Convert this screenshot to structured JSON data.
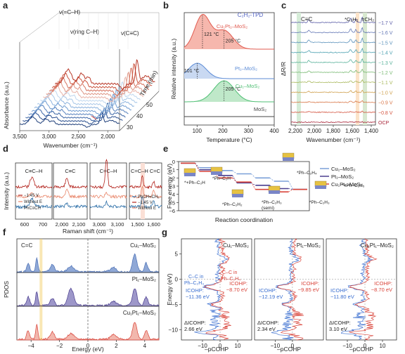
{
  "panel_labels": [
    "a",
    "b",
    "c",
    "d",
    "e",
    "f",
    "g"
  ],
  "chart_data": [
    {
      "id": "a",
      "type": "line",
      "xlabel": "Wavenumber (cm⁻¹)",
      "ylabel": "Absorbance (a.u.)",
      "zlabel": "Time (min)",
      "xticks": [
        "3,500",
        "3,000",
        "2,500",
        "2,000"
      ],
      "zticks": [
        "30",
        "40",
        "50"
      ],
      "annotations": [
        "ν(=C–H)",
        "ν(ring C–H)",
        "ν(C≡C)"
      ],
      "x": [
        3500,
        3400,
        3300,
        3200,
        3100,
        3000,
        2900,
        2800,
        2700,
        2600,
        2500,
        2400,
        2300,
        2200,
        2100,
        2000,
        1900,
        1800
      ],
      "series_profile": [
        0.05,
        0.1,
        0.5,
        0.25,
        0.3,
        0.2,
        0.18,
        0.15,
        0.12,
        0.1,
        0.12,
        0.15,
        0.05,
        0.2,
        0.6,
        0.3,
        0.25,
        0.5
      ],
      "n_series": 13
    },
    {
      "id": "b",
      "type": "area",
      "title": "C₂H₂-TPD",
      "xlabel": "Temperature (°C)",
      "ylabel": "Relative intensity (a.u.)",
      "xticks": [
        "100",
        "200",
        "300",
        "400"
      ],
      "xlim": [
        50,
        400
      ],
      "series": [
        {
          "name": "Cu₁Pt₁–MoS₂",
          "color": "#e05a4f",
          "peaks": [
            121,
            205
          ],
          "peak_labels": [
            "121 °C",
            "205 °C"
          ]
        },
        {
          "name": "Pt₁–MoS₂",
          "color": "#5b8bd6",
          "peaks": [
            101
          ],
          "peak_labels": [
            "101 °C"
          ]
        },
        {
          "name": "Cu₁–MoS₂",
          "color": "#4fbf74",
          "peaks": [
            205
          ],
          "peak_labels": [
            "205 °C"
          ]
        },
        {
          "name": "MoS₂",
          "color": "#444444",
          "peaks": [],
          "peak_labels": []
        }
      ]
    },
    {
      "id": "c",
      "type": "line",
      "xlabel": "Wavenumber (cm⁻¹)",
      "ylabel": "ΔR/R",
      "xticks": [
        "2,200",
        "2,000",
        "1,800",
        "1,600",
        "1,400"
      ],
      "annotations": [
        "C≡C",
        "*C₂H₂",
        "=CH₂"
      ],
      "potentials": [
        "−1.7 V",
        "−1.6 V",
        "−1.5 V",
        "−1.4 V",
        "−1.3 V",
        "−1.2 V",
        "−1.1 V",
        "−1.0 V",
        "−0.9 V",
        "−0.8 V",
        "OCP"
      ]
    },
    {
      "id": "d",
      "type": "line",
      "xlabel": "Raman shift (cm⁻¹)",
      "ylabel": "Intensity (a.u.)",
      "subpanels": [
        {
          "title": "C≡C–H",
          "xticks": [
            "600",
            "700"
          ],
          "legend": [
            "−1.45 V",
            "Without E",
            "PhC≡CH"
          ]
        },
        {
          "title": "C≡C",
          "xticks": [
            "2,000",
            "2,100"
          ],
          "legend": []
        },
        {
          "title": "C=C–H",
          "xticks": [
            "3,000",
            "3,100"
          ],
          "legend": []
        },
        {
          "title": "C=C–H  C=C",
          "xticks": [
            "1,500",
            "1,600"
          ],
          "legend": [
            "PhCH=CH₂",
            "−1.45 V",
            "Without E"
          ]
        }
      ]
    },
    {
      "id": "e",
      "type": "line",
      "xlabel": "Reaction coordination",
      "ylabel": "Free energy (eV)",
      "yticks": [
        "0",
        "−1",
        "−2",
        "−3",
        "−4",
        "−5",
        "−6"
      ],
      "ylim": [
        -6,
        0
      ],
      "steps": [
        "*+Ph–C₂H",
        "*Ph–C₂H",
        "*Ph–C₂H₂",
        "*Ph–C₂H₃ (semi)",
        "*Ph–C₂H₃",
        "*Ph–C₂H₄",
        "*+Ph–C₂H₅"
      ],
      "step_labels": [
        "*+Ph–C₂H",
        "*Ph–C₂H",
        "*Ph–C₂H₂",
        "*Ph–C₂H₃",
        "(semi)",
        "*Ph–C₂H₃",
        "*Ph–C₂H₄",
        "*+Ph–C₂H₅"
      ],
      "series": [
        {
          "name": "Cu₁–MoS₂",
          "color": "#7a9fd8",
          "values": [
            -0.2,
            -0.75,
            -1.1,
            -1.5,
            -2.0,
            -2.4,
            -3.4
          ]
        },
        {
          "name": "Pt₁–MoS₂",
          "color": "#4a3d8f",
          "values": [
            -0.2,
            -1.0,
            -1.7,
            -2.6,
            -2.9,
            -3.3,
            -3.4
          ]
        },
        {
          "name": "Cu₁Pt₁–MoS₂",
          "color": "#d9443a",
          "values": [
            -0.2,
            -1.2,
            -2.0,
            -2.5,
            -3.4,
            -3.7,
            -3.4
          ]
        }
      ]
    },
    {
      "id": "f",
      "type": "area",
      "xlabel": "Energy (eV)",
      "ylabel": "PDOS",
      "xticks": [
        "−4",
        "−2",
        "0",
        "2",
        "4"
      ],
      "xlim": [
        -5,
        5
      ],
      "annotation": "C=C",
      "series": [
        {
          "name": "Cu₁–MoS₂",
          "color": "#4a6fb5"
        },
        {
          "name": "Pt₁–MoS₂",
          "color": "#4a3d8f"
        },
        {
          "name": "Cu₁Pt₁–MoS₂",
          "color": "#d9443a"
        }
      ]
    },
    {
      "id": "g",
      "type": "line",
      "xlabel": "–pCOHP",
      "ylabel": "Energy (eV)",
      "yticks": [
        "5",
        "0",
        "−5",
        "−10"
      ],
      "ylim": [
        -12,
        8
      ],
      "subpanels": [
        {
          "title": "Cu₁–MoS₂",
          "bond": "C–C in Ph–C₂H₃",
          "bond_color": "#3b6fd0",
          "icohp_label": "ICOHP:",
          "icohp": "−11.36 eV",
          "icohp2_label": "ICOHP:",
          "icohp2": "−8.70 eV",
          "dicohp_label": "ΔICOHP:",
          "dicohp": "2.66 eV",
          "xticks": [
            "−10",
            "0",
            "10"
          ]
        },
        {
          "title": "Pt₁–MoS₂",
          "bond": "",
          "bond_color": "#3b6fd0",
          "icohp_label": "ICOHP:",
          "icohp": "−12.19 eV",
          "icohp2_label": "ICOHP:",
          "icohp2": "−9.85 eV",
          "dicohp_label": "ΔICOHP:",
          "dicohp": "2.34 eV",
          "xticks": [
            "−10",
            "0"
          ]
        },
        {
          "title": "Cu₁Pt₁–MoS₂",
          "bond": "",
          "bond_color": "#3b6fd0",
          "icohp_label": "ICOHP:",
          "icohp": "−11.80 eV",
          "icohp2_label": "ICOHP:",
          "icohp2": "−8.70 eV",
          "dicohp_label": "ΔICOHP:",
          "dicohp": "3.10 eV",
          "xticks": [
            "−10",
            "0",
            "10"
          ]
        }
      ],
      "bond2": "C–C in Ph–C₂H₄",
      "bond2_color": "#d9443a"
    }
  ]
}
